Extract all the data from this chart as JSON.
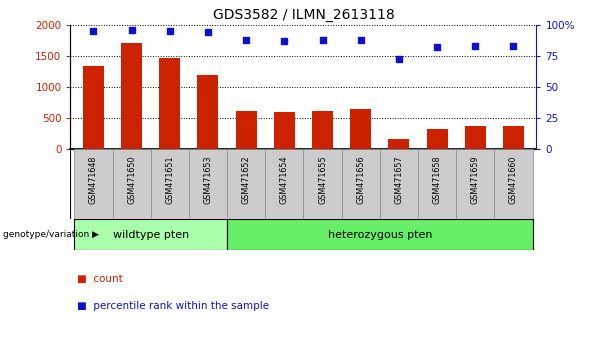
{
  "title": "GDS3582 / ILMN_2613118",
  "categories": [
    "GSM471648",
    "GSM471650",
    "GSM471651",
    "GSM471653",
    "GSM471652",
    "GSM471654",
    "GSM471655",
    "GSM471656",
    "GSM471657",
    "GSM471658",
    "GSM471659",
    "GSM471660"
  ],
  "counts": [
    1330,
    1700,
    1460,
    1190,
    615,
    600,
    605,
    640,
    155,
    325,
    360,
    360
  ],
  "percentiles": [
    95,
    96,
    95,
    94,
    88,
    87,
    88,
    88,
    72,
    82,
    83,
    83
  ],
  "bar_color": "#cc2200",
  "dot_color": "#1111cc",
  "ylim_left": [
    0,
    2000
  ],
  "ylim_right": [
    0,
    100
  ],
  "yticks_left": [
    0,
    500,
    1000,
    1500,
    2000
  ],
  "ytick_labels_left": [
    "0",
    "500",
    "1000",
    "1500",
    "2000"
  ],
  "yticks_right": [
    0,
    25,
    50,
    75,
    100
  ],
  "ytick_labels_right": [
    "0",
    "25",
    "50",
    "75",
    "100%"
  ],
  "wildtype_count": 4,
  "wildtype_label": "wildtype pten",
  "heterozygous_label": "heterozygous pten",
  "wildtype_color": "#aaffaa",
  "heterozygous_color": "#66ee66",
  "tick_bg_color": "#cccccc",
  "legend_count_label": "count",
  "legend_percentile_label": "percentile rank within the sample",
  "genotype_label": "genotype/variation"
}
